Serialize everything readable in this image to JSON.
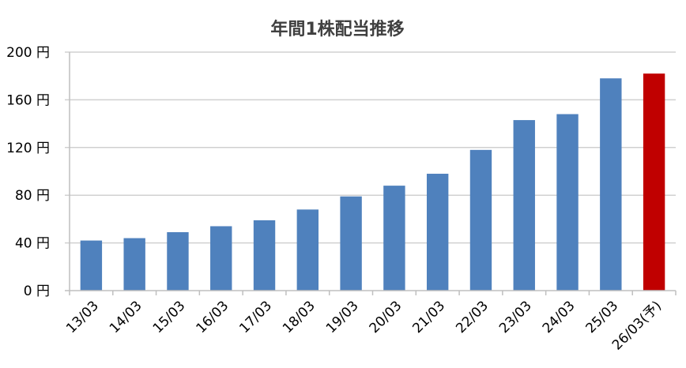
{
  "chart_data": {
    "type": "bar",
    "title": "年間1株配当推移",
    "xlabel": "",
    "ylabel": "",
    "categories": [
      "13/03",
      "14/03",
      "15/03",
      "16/03",
      "17/03",
      "18/03",
      "19/03",
      "20/03",
      "21/03",
      "22/03",
      "23/03",
      "24/03",
      "25/03",
      "26/03(予)"
    ],
    "values": [
      42,
      44,
      49,
      54,
      59,
      68,
      79,
      88,
      98,
      118,
      143,
      148,
      178,
      182
    ],
    "ylim": [
      0,
      200
    ],
    "yticks": [
      0,
      40,
      80,
      120,
      160,
      200
    ],
    "ytick_labels": [
      "0 円",
      "40 円",
      "80 円",
      "120 円",
      "160 円",
      "200 円"
    ],
    "grid": true,
    "legend": "none",
    "colors": {
      "bar": "#4f81bd",
      "highlight": "#c00000",
      "highlight_index": 13
    }
  }
}
